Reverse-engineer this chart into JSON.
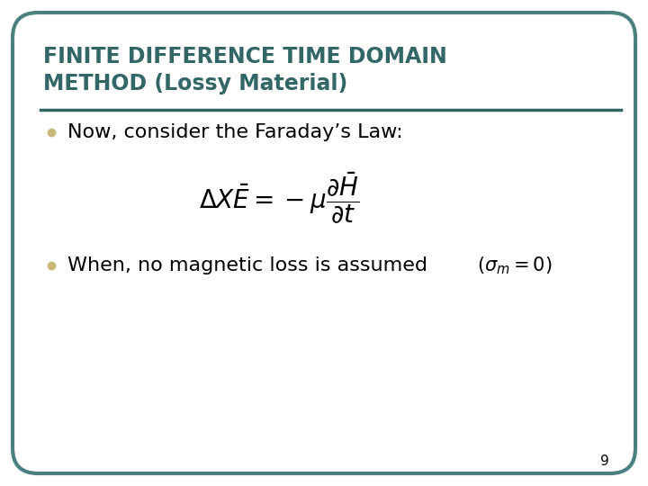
{
  "background_color": "#ffffff",
  "border_color": "#4a8080",
  "title_line1": "FINITE DIFFERENCE TIME DOMAIN",
  "title_line2": "METHOD (Lossy Material)",
  "title_color": "#336666",
  "separator_color": "#336666",
  "bullet_color": "#c8b87a",
  "bullet1_text": "Now, consider the Faraday’s Law:",
  "bullet2_text": "When, no magnetic loss is assumed",
  "page_number": "9",
  "text_color": "#000000",
  "body_fontsize": 16,
  "title_fontsize": 17,
  "eq_fontsize": 20,
  "sigma_fontsize": 15
}
